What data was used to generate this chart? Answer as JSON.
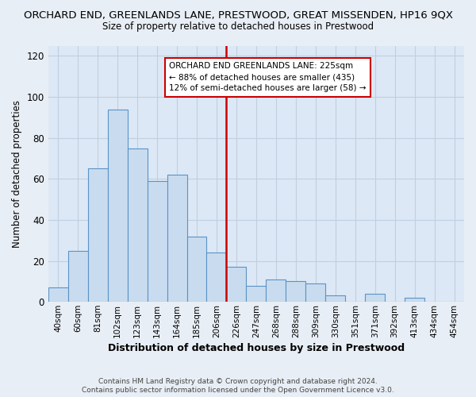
{
  "title": "ORCHARD END, GREENLANDS LANE, PRESTWOOD, GREAT MISSENDEN, HP16 9QX",
  "subtitle": "Size of property relative to detached houses in Prestwood",
  "xlabel": "Distribution of detached houses by size in Prestwood",
  "ylabel": "Number of detached properties",
  "bar_color": "#c9dcef",
  "bar_edge_color": "#5b93c7",
  "ref_line_color": "#cc0000",
  "annotation_line1": "ORCHARD END GREENLANDS LANE: 225sqm",
  "annotation_line2": "← 88% of detached houses are smaller (435)",
  "annotation_line3": "12% of semi-detached houses are larger (58) →",
  "categories": [
    "40sqm",
    "60sqm",
    "81sqm",
    "102sqm",
    "123sqm",
    "143sqm",
    "164sqm",
    "185sqm",
    "206sqm",
    "226sqm",
    "247sqm",
    "268sqm",
    "288sqm",
    "309sqm",
    "330sqm",
    "351sqm",
    "371sqm",
    "392sqm",
    "413sqm",
    "434sqm",
    "454sqm"
  ],
  "values": [
    7,
    25,
    65,
    94,
    75,
    59,
    62,
    32,
    24,
    17,
    8,
    11,
    10,
    9,
    3,
    0,
    4,
    0,
    2,
    0,
    0
  ],
  "ylim": [
    0,
    125
  ],
  "yticks": [
    0,
    20,
    40,
    60,
    80,
    100,
    120
  ],
  "footnote1": "Contains HM Land Registry data © Crown copyright and database right 2024.",
  "footnote2": "Contains public sector information licensed under the Open Government Licence v3.0.",
  "fig_bg_color": "#e8eef5",
  "plot_bg_color": "#dce8f5",
  "grid_color": "#c0cfe0",
  "annotation_box_color": "#ffffff",
  "annotation_box_edge": "#cc0000",
  "ref_line_index": 9
}
